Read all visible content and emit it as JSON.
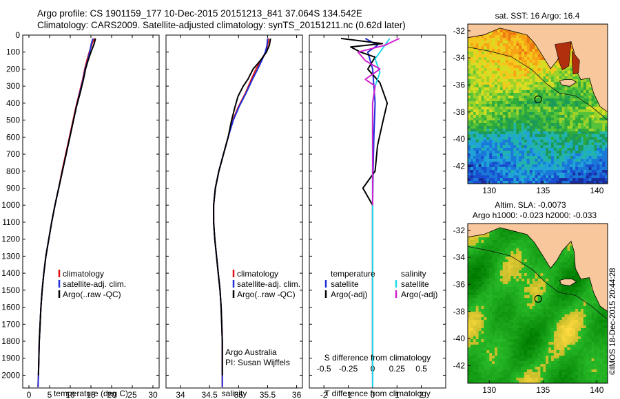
{
  "header": {
    "line1": "Argo profile: CS 1901159_177 10-Dec-2015 20151213_841 37.064S 134.542E",
    "line2": "Climatology: CARS2009. Satellite-adjusted climatology: synTS_20151211.nc (0.62d later)"
  },
  "colors": {
    "climatology": "#e01010",
    "satellite": "#1f2fd8",
    "argo": "#000000",
    "satellite_s": "#22d8e8",
    "argo_s": "#d020d0",
    "land": "#f9c79c"
  },
  "panel1": {
    "xlabel": "temperature (deg C)",
    "legend": [
      "climatology",
      "satellite-adj. clim.",
      "Argo(..raw -QC)"
    ]
  },
  "panel2": {
    "xlabel": "salinity",
    "legend": [
      "climatology",
      "satellite-adj. clim.",
      "Argo(..raw -QC)"
    ],
    "note1": "Argo Australia",
    "note2": "PI: Susan Wijffels"
  },
  "panel3": {
    "xlabel": "T difference from climatology",
    "top_label": "S difference from climatology",
    "legend_t_head": "temperature",
    "legend_s_head": "salinity",
    "legend_t": [
      "satellite",
      "Argo(-adj)"
    ],
    "legend_s": [
      "satellite",
      "Argo(-adj)"
    ]
  },
  "map1": {
    "title": "sat. SST: 16 Argo: 16.4"
  },
  "map2": {
    "title1": "Altim. SLA: -0.0073",
    "title2": "Argo h1000: -0.023 h2000: -0.033"
  },
  "side_note": "©IMOS 18-Dec-2015 20:44:28",
  "chart_data": [
    {
      "type": "line",
      "name": "temperature profile",
      "xlabel": "temperature (deg C)",
      "ylabel": "",
      "xlim": [
        -1.5,
        31.5
      ],
      "ylim": [
        2075,
        0
      ],
      "xticks": [
        0,
        5,
        10,
        15,
        20,
        25,
        30
      ],
      "yticks": [
        0,
        100,
        200,
        300,
        400,
        500,
        600,
        700,
        800,
        900,
        1000,
        1100,
        1200,
        1300,
        1400,
        1500,
        1600,
        1700,
        1800,
        1900,
        2000
      ],
      "series": [
        {
          "name": "climatology",
          "color_key": "climatology",
          "points": [
            [
              15.8,
              20
            ],
            [
              15.3,
              50
            ],
            [
              14.6,
              100
            ],
            [
              14.0,
              150
            ],
            [
              13.5,
              200
            ],
            [
              13.0,
              260
            ],
            [
              12.2,
              340
            ],
            [
              11.4,
              420
            ],
            [
              10.6,
              510
            ],
            [
              9.8,
              600
            ],
            [
              8.9,
              700
            ],
            [
              8.0,
              800
            ],
            [
              7.2,
              900
            ],
            [
              6.3,
              1000
            ],
            [
              5.5,
              1100
            ],
            [
              4.8,
              1200
            ],
            [
              4.1,
              1300
            ],
            [
              3.6,
              1400
            ],
            [
              3.2,
              1500
            ],
            [
              2.9,
              1600
            ],
            [
              2.7,
              1700
            ],
            [
              2.5,
              1800
            ],
            [
              2.4,
              1900
            ],
            [
              2.3,
              2000
            ],
            [
              2.2,
              2070
            ]
          ]
        },
        {
          "name": "satellite-adj. clim.",
          "color_key": "satellite",
          "points": [
            [
              15.5,
              20
            ],
            [
              15.1,
              50
            ],
            [
              14.7,
              100
            ],
            [
              14.2,
              150
            ],
            [
              13.6,
              200
            ],
            [
              13.1,
              260
            ],
            [
              12.3,
              340
            ],
            [
              11.5,
              420
            ],
            [
              10.7,
              510
            ],
            [
              9.9,
              600
            ],
            [
              9.0,
              700
            ],
            [
              8.1,
              800
            ],
            [
              7.2,
              900
            ],
            [
              6.3,
              1000
            ],
            [
              5.5,
              1100
            ],
            [
              4.8,
              1200
            ],
            [
              4.1,
              1300
            ],
            [
              3.6,
              1400
            ],
            [
              3.2,
              1500
            ],
            [
              2.9,
              1600
            ],
            [
              2.7,
              1700
            ],
            [
              2.5,
              1800
            ],
            [
              2.4,
              1900
            ],
            [
              2.3,
              2000
            ],
            [
              2.2,
              2070
            ]
          ]
        },
        {
          "name": "Argo(..raw -QC)",
          "color_key": "argo",
          "points": [
            [
              16.1,
              20
            ],
            [
              15.8,
              50
            ],
            [
              15.0,
              100
            ],
            [
              14.3,
              150
            ],
            [
              13.7,
              200
            ],
            [
              13.2,
              260
            ],
            [
              12.4,
              340
            ],
            [
              11.5,
              420
            ],
            [
              10.7,
              510
            ],
            [
              9.9,
              600
            ],
            [
              9.0,
              700
            ],
            [
              8.1,
              800
            ],
            [
              7.2,
              900
            ],
            [
              6.3,
              1000
            ],
            [
              5.5,
              1100
            ],
            [
              4.8,
              1200
            ],
            [
              4.1,
              1300
            ],
            [
              3.6,
              1400
            ],
            [
              3.2,
              1500
            ],
            [
              2.9,
              1600
            ],
            [
              2.7,
              1700
            ],
            [
              2.5,
              1800
            ],
            [
              2.4,
              1900
            ],
            [
              2.3,
              2000
            ]
          ]
        }
      ]
    },
    {
      "type": "line",
      "name": "salinity profile",
      "xlabel": "salinity",
      "ylabel": "",
      "xlim": [
        33.75,
        36.1
      ],
      "ylim": [
        2075,
        0
      ],
      "xticks": [
        34,
        34.5,
        35,
        35.5,
        36
      ],
      "series": [
        {
          "name": "climatology",
          "color_key": "climatology",
          "points": [
            [
              35.52,
              20
            ],
            [
              35.5,
              60
            ],
            [
              35.47,
              100
            ],
            [
              35.38,
              150
            ],
            [
              35.3,
              200
            ],
            [
              35.22,
              260
            ],
            [
              35.12,
              340
            ],
            [
              35.0,
              420
            ],
            [
              34.9,
              500
            ],
            [
              34.82,
              600
            ],
            [
              34.74,
              700
            ],
            [
              34.66,
              800
            ],
            [
              34.6,
              900
            ],
            [
              34.57,
              1000
            ],
            [
              34.57,
              1100
            ],
            [
              34.59,
              1200
            ],
            [
              34.62,
              1300
            ],
            [
              34.65,
              1400
            ],
            [
              34.68,
              1500
            ],
            [
              34.7,
              1600
            ],
            [
              34.71,
              1700
            ],
            [
              34.72,
              1800
            ],
            [
              34.72,
              1900
            ],
            [
              34.72,
              2000
            ],
            [
              34.72,
              2070
            ]
          ]
        },
        {
          "name": "satellite-adj. clim.",
          "color_key": "satellite",
          "points": [
            [
              35.5,
              20
            ],
            [
              35.49,
              60
            ],
            [
              35.46,
              100
            ],
            [
              35.4,
              150
            ],
            [
              35.33,
              200
            ],
            [
              35.24,
              260
            ],
            [
              35.13,
              340
            ],
            [
              35.01,
              420
            ],
            [
              34.91,
              500
            ],
            [
              34.82,
              600
            ],
            [
              34.74,
              700
            ],
            [
              34.66,
              800
            ],
            [
              34.6,
              900
            ],
            [
              34.57,
              1000
            ],
            [
              34.57,
              1100
            ],
            [
              34.59,
              1200
            ],
            [
              34.62,
              1300
            ],
            [
              34.65,
              1400
            ],
            [
              34.68,
              1500
            ],
            [
              34.7,
              1600
            ],
            [
              34.71,
              1700
            ],
            [
              34.72,
              1800
            ],
            [
              34.72,
              1900
            ],
            [
              34.72,
              2000
            ],
            [
              34.72,
              2070
            ]
          ]
        },
        {
          "name": "Argo(..raw -QC)",
          "color_key": "argo",
          "points": [
            [
              35.55,
              20
            ],
            [
              35.53,
              60
            ],
            [
              35.48,
              100
            ],
            [
              35.44,
              120
            ],
            [
              35.35,
              160
            ],
            [
              35.25,
              200
            ],
            [
              35.16,
              260
            ],
            [
              35.08,
              300
            ],
            [
              34.99,
              360
            ],
            [
              34.94,
              420
            ],
            [
              34.88,
              500
            ],
            [
              34.82,
              600
            ],
            [
              34.74,
              700
            ],
            [
              34.66,
              800
            ],
            [
              34.6,
              900
            ],
            [
              34.57,
              1000
            ],
            [
              34.57,
              1100
            ],
            [
              34.59,
              1200
            ],
            [
              34.62,
              1300
            ],
            [
              34.65,
              1400
            ],
            [
              34.68,
              1500
            ],
            [
              34.7,
              1600
            ],
            [
              34.71,
              1700
            ],
            [
              34.72,
              1800
            ],
            [
              34.72,
              1900
            ],
            [
              34.72,
              2000
            ]
          ]
        }
      ]
    },
    {
      "type": "line",
      "name": "difference profile",
      "xlabel": "T difference from climatology",
      "top_xlabel": "S difference from climatology",
      "xlim": [
        -2.6,
        3.0
      ],
      "ylim": [
        2075,
        0
      ],
      "xticks": [
        -2,
        -1,
        0,
        1,
        2
      ],
      "top_xticks_values": [
        -0.5,
        -0.25,
        0,
        0.25,
        0.5
      ],
      "top_xtick_labels": [
        "-0.5",
        "-0.25",
        "0",
        "0.25",
        "0.5"
      ],
      "series": [
        {
          "name": "temperature satellite",
          "color_key": "satellite",
          "points": [
            [
              -0.3,
              20
            ],
            [
              0.2,
              60
            ],
            [
              -0.2,
              100
            ],
            [
              0.0,
              200
            ],
            [
              0.1,
              400
            ],
            [
              0.05,
              600
            ],
            [
              0.02,
              800
            ],
            [
              0.0,
              1000
            ],
            [
              0.0,
              1500
            ],
            [
              0.0,
              2000
            ],
            [
              0.0,
              2070
            ]
          ]
        },
        {
          "name": "temperature Argo(-adj)",
          "color_key": "argo",
          "points": [
            [
              -1.3,
              20
            ],
            [
              0.4,
              50
            ],
            [
              -0.9,
              70
            ],
            [
              -0.5,
              100
            ],
            [
              0.1,
              130
            ],
            [
              -0.2,
              200
            ],
            [
              0.3,
              280
            ],
            [
              0.6,
              400
            ],
            [
              0.4,
              520
            ],
            [
              0.2,
              650
            ],
            [
              0.1,
              800
            ],
            [
              -0.4,
              900
            ],
            [
              0.0,
              1000
            ],
            [
              0.0,
              1500
            ],
            [
              0.0,
              2000
            ]
          ]
        },
        {
          "name": "salinity satellite",
          "color_key": "satellite_s",
          "points": [
            [
              0.7,
              20
            ],
            [
              0.4,
              80
            ],
            [
              0.1,
              140
            ],
            [
              0.3,
              220
            ],
            [
              0.1,
              300
            ],
            [
              0.0,
              400
            ],
            [
              0.0,
              600
            ],
            [
              0.0,
              1000
            ],
            [
              0.0,
              1500
            ],
            [
              0.0,
              2070
            ]
          ]
        },
        {
          "name": "salinity Argo(-adj)",
          "color_key": "argo_s",
          "points": [
            [
              1.1,
              20
            ],
            [
              0.5,
              60
            ],
            [
              -0.6,
              100
            ],
            [
              -0.3,
              150
            ],
            [
              0.3,
              200
            ],
            [
              -0.3,
              260
            ],
            [
              0.1,
              300
            ],
            [
              0.0,
              400
            ],
            [
              0.0,
              1000
            ]
          ]
        }
      ]
    },
    {
      "type": "heatmap",
      "name": "SST map",
      "title": "sat. SST: 16 Argo: 16.4",
      "xlim": [
        128,
        141
      ],
      "ylim": [
        -43.3,
        -31.5
      ],
      "xticks": [
        130,
        135,
        140
      ],
      "yticks": [
        -32,
        -34,
        -36,
        -38,
        -40,
        -42
      ],
      "marker": [
        134.542,
        -37.064
      ]
    },
    {
      "type": "heatmap",
      "name": "SLA map",
      "title": "Altim. SLA: -0.0073",
      "xlim": [
        128,
        141
      ],
      "ylim": [
        -43.3,
        -31.5
      ],
      "xticks": [
        130,
        135,
        140
      ],
      "yticks": [
        -32,
        -34,
        -36,
        -38,
        -40,
        -42
      ],
      "marker": [
        134.542,
        -37.064
      ]
    }
  ]
}
